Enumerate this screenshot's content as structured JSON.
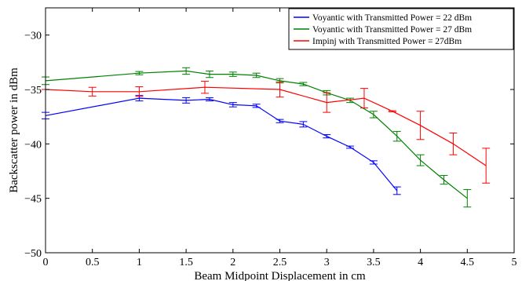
{
  "chart_data": {
    "type": "line",
    "xlabel": "Beam Midpoint Displacement in cm",
    "ylabel": "Backscatter power in dBm",
    "xlim": [
      0,
      5
    ],
    "ylim": [
      -50,
      -27.5
    ],
    "xticks": [
      "0",
      "0.5",
      "1",
      "1.5",
      "2",
      "2.5",
      "3",
      "3.5",
      "4",
      "4.5",
      "5"
    ],
    "yticks": [
      "−50",
      "−45",
      "−40",
      "−35",
      "−30"
    ],
    "legend_position": "top-right",
    "grid": false,
    "series": [
      {
        "name": "Voyantic with Transmitted Power = 22 dBm",
        "color": "#0000ff",
        "points": [
          {
            "x": 0,
            "y": -37.4,
            "err": 0.3
          },
          {
            "x": 1,
            "y": -35.8,
            "err": 0.25
          },
          {
            "x": 1.5,
            "y": -36.0,
            "err": 0.25
          },
          {
            "x": 1.75,
            "y": -35.9,
            "err": 0.15
          },
          {
            "x": 2,
            "y": -36.4,
            "err": 0.2
          },
          {
            "x": 2.25,
            "y": -36.5,
            "err": 0.15
          },
          {
            "x": 2.5,
            "y": -37.9,
            "err": 0.15
          },
          {
            "x": 2.75,
            "y": -38.2,
            "err": 0.25
          },
          {
            "x": 3,
            "y": -39.3,
            "err": 0.15
          },
          {
            "x": 3.25,
            "y": -40.3,
            "err": 0.1
          },
          {
            "x": 3.5,
            "y": -41.7,
            "err": 0.15
          },
          {
            "x": 3.75,
            "y": -44.3,
            "err": 0.35
          }
        ]
      },
      {
        "name": "Voyantic with Transmitted Power = 27 dBm",
        "color": "#008000",
        "points": [
          {
            "x": 0,
            "y": -34.2,
            "err": 0.35
          },
          {
            "x": 1,
            "y": -33.5,
            "err": 0.15
          },
          {
            "x": 1.5,
            "y": -33.3,
            "err": 0.3
          },
          {
            "x": 1.75,
            "y": -33.6,
            "err": 0.3
          },
          {
            "x": 2,
            "y": -33.6,
            "err": 0.2
          },
          {
            "x": 2.25,
            "y": -33.7,
            "err": 0.2
          },
          {
            "x": 2.5,
            "y": -34.2,
            "err": 0.2
          },
          {
            "x": 2.75,
            "y": -34.5,
            "err": 0.15
          },
          {
            "x": 3,
            "y": -35.3,
            "err": 0.2
          },
          {
            "x": 3.25,
            "y": -36.0,
            "err": 0.2
          },
          {
            "x": 3.5,
            "y": -37.3,
            "err": 0.3
          },
          {
            "x": 3.75,
            "y": -39.3,
            "err": 0.45
          },
          {
            "x": 4,
            "y": -41.5,
            "err": 0.5
          },
          {
            "x": 4.25,
            "y": -43.3,
            "err": 0.4
          },
          {
            "x": 4.5,
            "y": -45.0,
            "err": 0.8
          }
        ]
      },
      {
        "name": "Impinj with Transmitted Power = 27dBm",
        "color": "#ff0000",
        "points": [
          {
            "x": 0,
            "y": -35.0,
            "err": 0
          },
          {
            "x": 0.5,
            "y": -35.2,
            "err": 0.4
          },
          {
            "x": 1,
            "y": -35.2,
            "err": 0.45
          },
          {
            "x": 1.7,
            "y": -34.8,
            "err": 0.55
          },
          {
            "x": 2.5,
            "y": -35.0,
            "err": 0.7
          },
          {
            "x": 3,
            "y": -36.2,
            "err": 0.9
          },
          {
            "x": 3.4,
            "y": -35.8,
            "err": 0.9
          },
          {
            "x": 3.7,
            "y": -37.0,
            "err": 0.05
          },
          {
            "x": 4,
            "y": -38.3,
            "err": 1.3
          },
          {
            "x": 4.35,
            "y": -40.0,
            "err": 1.0
          },
          {
            "x": 4.7,
            "y": -42.0,
            "err": 1.6
          }
        ]
      }
    ]
  }
}
